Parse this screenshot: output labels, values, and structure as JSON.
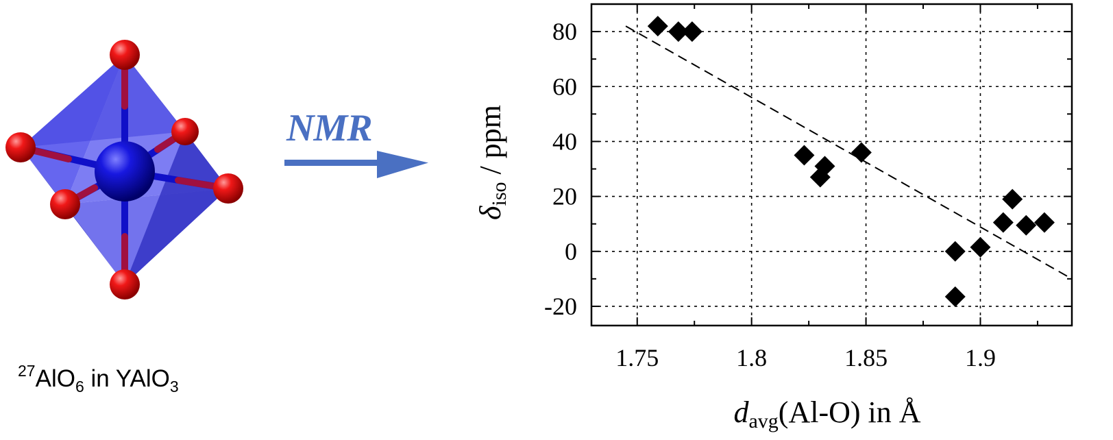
{
  "caption": {
    "isotope": "27",
    "element": "AlO",
    "sub1": "6",
    "middle": " in YAlO",
    "sub2": "3"
  },
  "nmr_label": "NMR",
  "colors": {
    "oxygen": "#e8141a",
    "aluminum": "#1c1ccc",
    "octahedron": "#5a5aee",
    "arrow": "#4a70c2"
  },
  "chart_data": {
    "type": "scatter",
    "title": "",
    "xlabel_main": "d",
    "xlabel_sub": "avg",
    "xlabel_rest": "(Al-O) in Å",
    "ylabel_main": "δ",
    "ylabel_sub": "iso",
    "ylabel_rest": " / ppm",
    "xlim": [
      1.73,
      1.94
    ],
    "ylim": [
      -27,
      90
    ],
    "xticks": [
      1.75,
      1.8,
      1.85,
      1.9
    ],
    "xtick_labels": [
      "1.75",
      "1.8",
      "1.85",
      "1.9"
    ],
    "yticks": [
      -20,
      0,
      20,
      40,
      60,
      80
    ],
    "ytick_labels": [
      "-20",
      "0",
      "20",
      "40",
      "60",
      "80"
    ],
    "grid": true,
    "marker": "diamond",
    "points": [
      {
        "x": 1.759,
        "y": 82
      },
      {
        "x": 1.768,
        "y": 80
      },
      {
        "x": 1.774,
        "y": 80
      },
      {
        "x": 1.823,
        "y": 35
      },
      {
        "x": 1.83,
        "y": 27
      },
      {
        "x": 1.832,
        "y": 31
      },
      {
        "x": 1.848,
        "y": 36
      },
      {
        "x": 1.889,
        "y": 0
      },
      {
        "x": 1.889,
        "y": -16.5
      },
      {
        "x": 1.9,
        "y": 1.5
      },
      {
        "x": 1.91,
        "y": 10.5
      },
      {
        "x": 1.914,
        "y": 19
      },
      {
        "x": 1.92,
        "y": 9.5
      },
      {
        "x": 1.928,
        "y": 10.5
      }
    ],
    "fit_line": {
      "x": [
        1.745,
        1.94
      ],
      "y": [
        82,
        -10
      ]
    }
  }
}
